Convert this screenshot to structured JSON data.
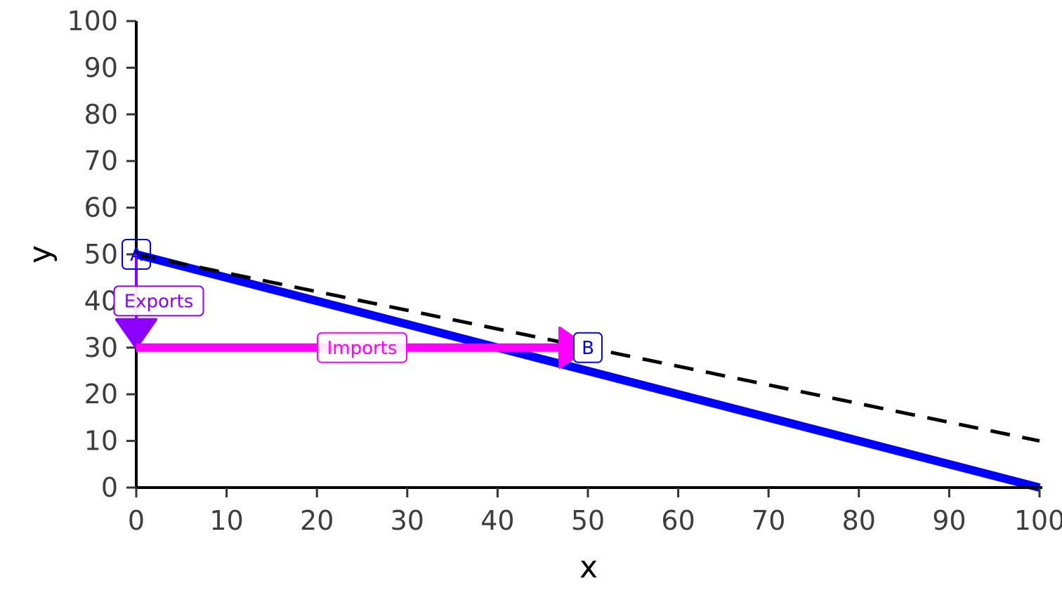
{
  "chart_data": {
    "type": "line",
    "xlabel": "x",
    "ylabel": "y",
    "xlim": [
      0,
      100
    ],
    "ylim": [
      0,
      100
    ],
    "x_ticks": [
      0,
      10,
      20,
      30,
      40,
      50,
      60,
      70,
      80,
      90,
      100
    ],
    "y_ticks": [
      0,
      10,
      20,
      30,
      40,
      50,
      60,
      70,
      80,
      90,
      100
    ],
    "grid": false,
    "series": [
      {
        "style": "solid",
        "color": "#0000ff",
        "points": [
          [
            0,
            50
          ],
          [
            100,
            0
          ]
        ]
      },
      {
        "style": "dashed",
        "color": "#000000",
        "points": [
          [
            0,
            50
          ],
          [
            100,
            10
          ]
        ]
      }
    ],
    "points": [
      {
        "label": "A",
        "x": 0,
        "y": 50,
        "color": "#0000ff"
      },
      {
        "label": "B",
        "x": 50,
        "y": 30,
        "color": "#0000ff"
      }
    ],
    "arrows": [
      {
        "label": "Exports",
        "color": "#8b00ff",
        "from": [
          0,
          50
        ],
        "to": [
          0,
          30
        ]
      },
      {
        "label": "Imports",
        "color": "#ff00ff",
        "from": [
          0,
          30
        ],
        "to": [
          50,
          30
        ]
      }
    ]
  }
}
